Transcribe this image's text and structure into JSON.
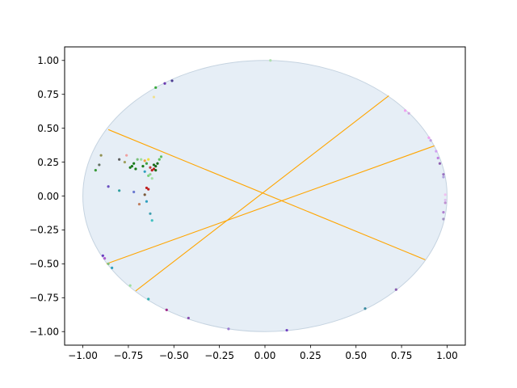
{
  "chart_data": {
    "type": "scatter",
    "title": "",
    "xlabel": "",
    "ylabel": "",
    "xlim": [
      -1.1,
      1.1
    ],
    "ylim": [
      -1.1,
      1.1
    ],
    "grid": false,
    "xticks": [
      -1.0,
      -0.75,
      -0.5,
      -0.25,
      0.0,
      0.25,
      0.5,
      0.75,
      1.0
    ],
    "yticks": [
      -1.0,
      -0.75,
      -0.5,
      -0.25,
      0.0,
      0.25,
      0.5,
      0.75,
      1.0
    ],
    "xtick_labels": [
      "−1.00",
      "−0.75",
      "−0.50",
      "−0.25",
      "0.00",
      "0.25",
      "0.50",
      "0.75",
      "1.00"
    ],
    "ytick_labels": [
      "−1.00",
      "−0.75",
      "−0.50",
      "−0.25",
      "0.00",
      "0.25",
      "0.50",
      "0.75",
      "1.00"
    ],
    "disk": {
      "center": [
        0,
        0
      ],
      "radius": 1.0,
      "fill": "#e6eef6",
      "stroke": "#c5d3e0"
    },
    "geodesic_color": "#ffa500",
    "geodesics": [
      {
        "from": [
          -0.86,
          0.49
        ],
        "to": [
          0.88,
          -0.47
        ]
      },
      {
        "from": [
          -0.71,
          -0.7
        ],
        "to": [
          0.68,
          0.74
        ]
      },
      {
        "from": [
          -0.87,
          -0.5
        ],
        "to": [
          0.93,
          0.37
        ]
      }
    ],
    "points": [
      {
        "x": 0.03,
        "y": 1.0,
        "color": "#b0dfb0"
      },
      {
        "x": -0.6,
        "y": 0.8,
        "color": "#3aaa3a"
      },
      {
        "x": -0.55,
        "y": 0.83,
        "color": "#6a3ab0"
      },
      {
        "x": -0.51,
        "y": 0.85,
        "color": "#4a3a90"
      },
      {
        "x": -0.61,
        "y": 0.73,
        "color": "#f0e090"
      },
      {
        "x": 0.77,
        "y": 0.63,
        "color": "#f0a0f0"
      },
      {
        "x": 0.79,
        "y": 0.61,
        "color": "#d0a0e0"
      },
      {
        "x": 0.9,
        "y": 0.43,
        "color": "#f0a0f0"
      },
      {
        "x": 0.91,
        "y": 0.41,
        "color": "#c0a0e0"
      },
      {
        "x": 0.94,
        "y": 0.33,
        "color": "#d0a0f0"
      },
      {
        "x": 0.95,
        "y": 0.28,
        "color": "#c080e0"
      },
      {
        "x": 0.96,
        "y": 0.24,
        "color": "#9060b0"
      },
      {
        "x": 0.98,
        "y": 0.16,
        "color": "#9a70c0"
      },
      {
        "x": 0.98,
        "y": 0.14,
        "color": "#b0a0e0"
      },
      {
        "x": 0.99,
        "y": 0.01,
        "color": "#f0c0f0"
      },
      {
        "x": 0.99,
        "y": -0.03,
        "color": "#e0c0f0"
      },
      {
        "x": 0.99,
        "y": -0.05,
        "color": "#c090d0"
      },
      {
        "x": 0.98,
        "y": -0.12,
        "color": "#b080d0"
      },
      {
        "x": 0.98,
        "y": -0.17,
        "color": "#a090c0"
      },
      {
        "x": 0.72,
        "y": -0.69,
        "color": "#8a60b0"
      },
      {
        "x": 0.55,
        "y": -0.83,
        "color": "#3a8aa0"
      },
      {
        "x": 0.12,
        "y": -0.99,
        "color": "#7040c0"
      },
      {
        "x": -0.2,
        "y": -0.98,
        "color": "#9a7ad0"
      },
      {
        "x": -0.42,
        "y": -0.9,
        "color": "#8a50b0"
      },
      {
        "x": -0.54,
        "y": -0.84,
        "color": "#a02a8a"
      },
      {
        "x": -0.64,
        "y": -0.76,
        "color": "#30b0b0"
      },
      {
        "x": -0.74,
        "y": -0.66,
        "color": "#a0e0a0"
      },
      {
        "x": -0.84,
        "y": -0.53,
        "color": "#30a0c0"
      },
      {
        "x": -0.86,
        "y": -0.5,
        "color": "#80c080"
      },
      {
        "x": -0.88,
        "y": -0.46,
        "color": "#b060d0"
      },
      {
        "x": -0.89,
        "y": -0.44,
        "color": "#6a3ac0"
      },
      {
        "x": -0.9,
        "y": 0.3,
        "color": "#909050"
      },
      {
        "x": -0.91,
        "y": 0.23,
        "color": "#607060"
      },
      {
        "x": -0.93,
        "y": 0.19,
        "color": "#3a9a3a"
      },
      {
        "x": -0.86,
        "y": 0.07,
        "color": "#6a50c0"
      },
      {
        "x": -0.8,
        "y": 0.04,
        "color": "#30a0a0"
      },
      {
        "x": -0.72,
        "y": 0.03,
        "color": "#6a7ad0"
      },
      {
        "x": -0.8,
        "y": 0.27,
        "color": "#606060"
      },
      {
        "x": -0.77,
        "y": 0.25,
        "color": "#a0a060"
      },
      {
        "x": -0.76,
        "y": 0.3,
        "color": "#f0a0a0"
      },
      {
        "x": -0.73,
        "y": 0.22,
        "color": "#1a7a1a"
      },
      {
        "x": -0.72,
        "y": 0.24,
        "color": "#1a7a1a"
      },
      {
        "x": -0.71,
        "y": 0.2,
        "color": "#1a7a1a"
      },
      {
        "x": -0.74,
        "y": 0.21,
        "color": "#1a7a1a"
      },
      {
        "x": -0.7,
        "y": 0.27,
        "color": "#7ac07a"
      },
      {
        "x": -0.68,
        "y": 0.27,
        "color": "#a0e0a0"
      },
      {
        "x": -0.67,
        "y": 0.22,
        "color": "#1a7a1a"
      },
      {
        "x": -0.66,
        "y": 0.26,
        "color": "#f0a040"
      },
      {
        "x": -0.65,
        "y": 0.24,
        "color": "#40a040"
      },
      {
        "x": -0.64,
        "y": 0.27,
        "color": "#f0e040"
      },
      {
        "x": -0.63,
        "y": 0.21,
        "color": "#c04040"
      },
      {
        "x": -0.62,
        "y": 0.19,
        "color": "#c02020"
      },
      {
        "x": -0.61,
        "y": 0.2,
        "color": "#c02020"
      },
      {
        "x": -0.61,
        "y": 0.23,
        "color": "#1a6a1a"
      },
      {
        "x": -0.6,
        "y": 0.22,
        "color": "#1a6a1a"
      },
      {
        "x": -0.6,
        "y": 0.19,
        "color": "#1a6a1a"
      },
      {
        "x": -0.59,
        "y": 0.24,
        "color": "#1a6a1a"
      },
      {
        "x": -0.58,
        "y": 0.27,
        "color": "#60c060"
      },
      {
        "x": -0.57,
        "y": 0.29,
        "color": "#60c060"
      },
      {
        "x": -0.63,
        "y": 0.16,
        "color": "#90d090"
      },
      {
        "x": -0.66,
        "y": 0.18,
        "color": "#30a0c0"
      },
      {
        "x": -0.64,
        "y": 0.15,
        "color": "#7ad07a"
      },
      {
        "x": -0.62,
        "y": 0.13,
        "color": "#a0e0a0"
      },
      {
        "x": -0.65,
        "y": 0.06,
        "color": "#c02020"
      },
      {
        "x": -0.64,
        "y": 0.05,
        "color": "#c02020"
      },
      {
        "x": -0.66,
        "y": 0.01,
        "color": "#7a5a3a"
      },
      {
        "x": -0.65,
        "y": -0.04,
        "color": "#30a0c0"
      },
      {
        "x": -0.69,
        "y": -0.06,
        "color": "#c08060"
      },
      {
        "x": -0.63,
        "y": -0.13,
        "color": "#40a0b0"
      },
      {
        "x": -0.62,
        "y": -0.18,
        "color": "#40c0c0"
      }
    ]
  }
}
